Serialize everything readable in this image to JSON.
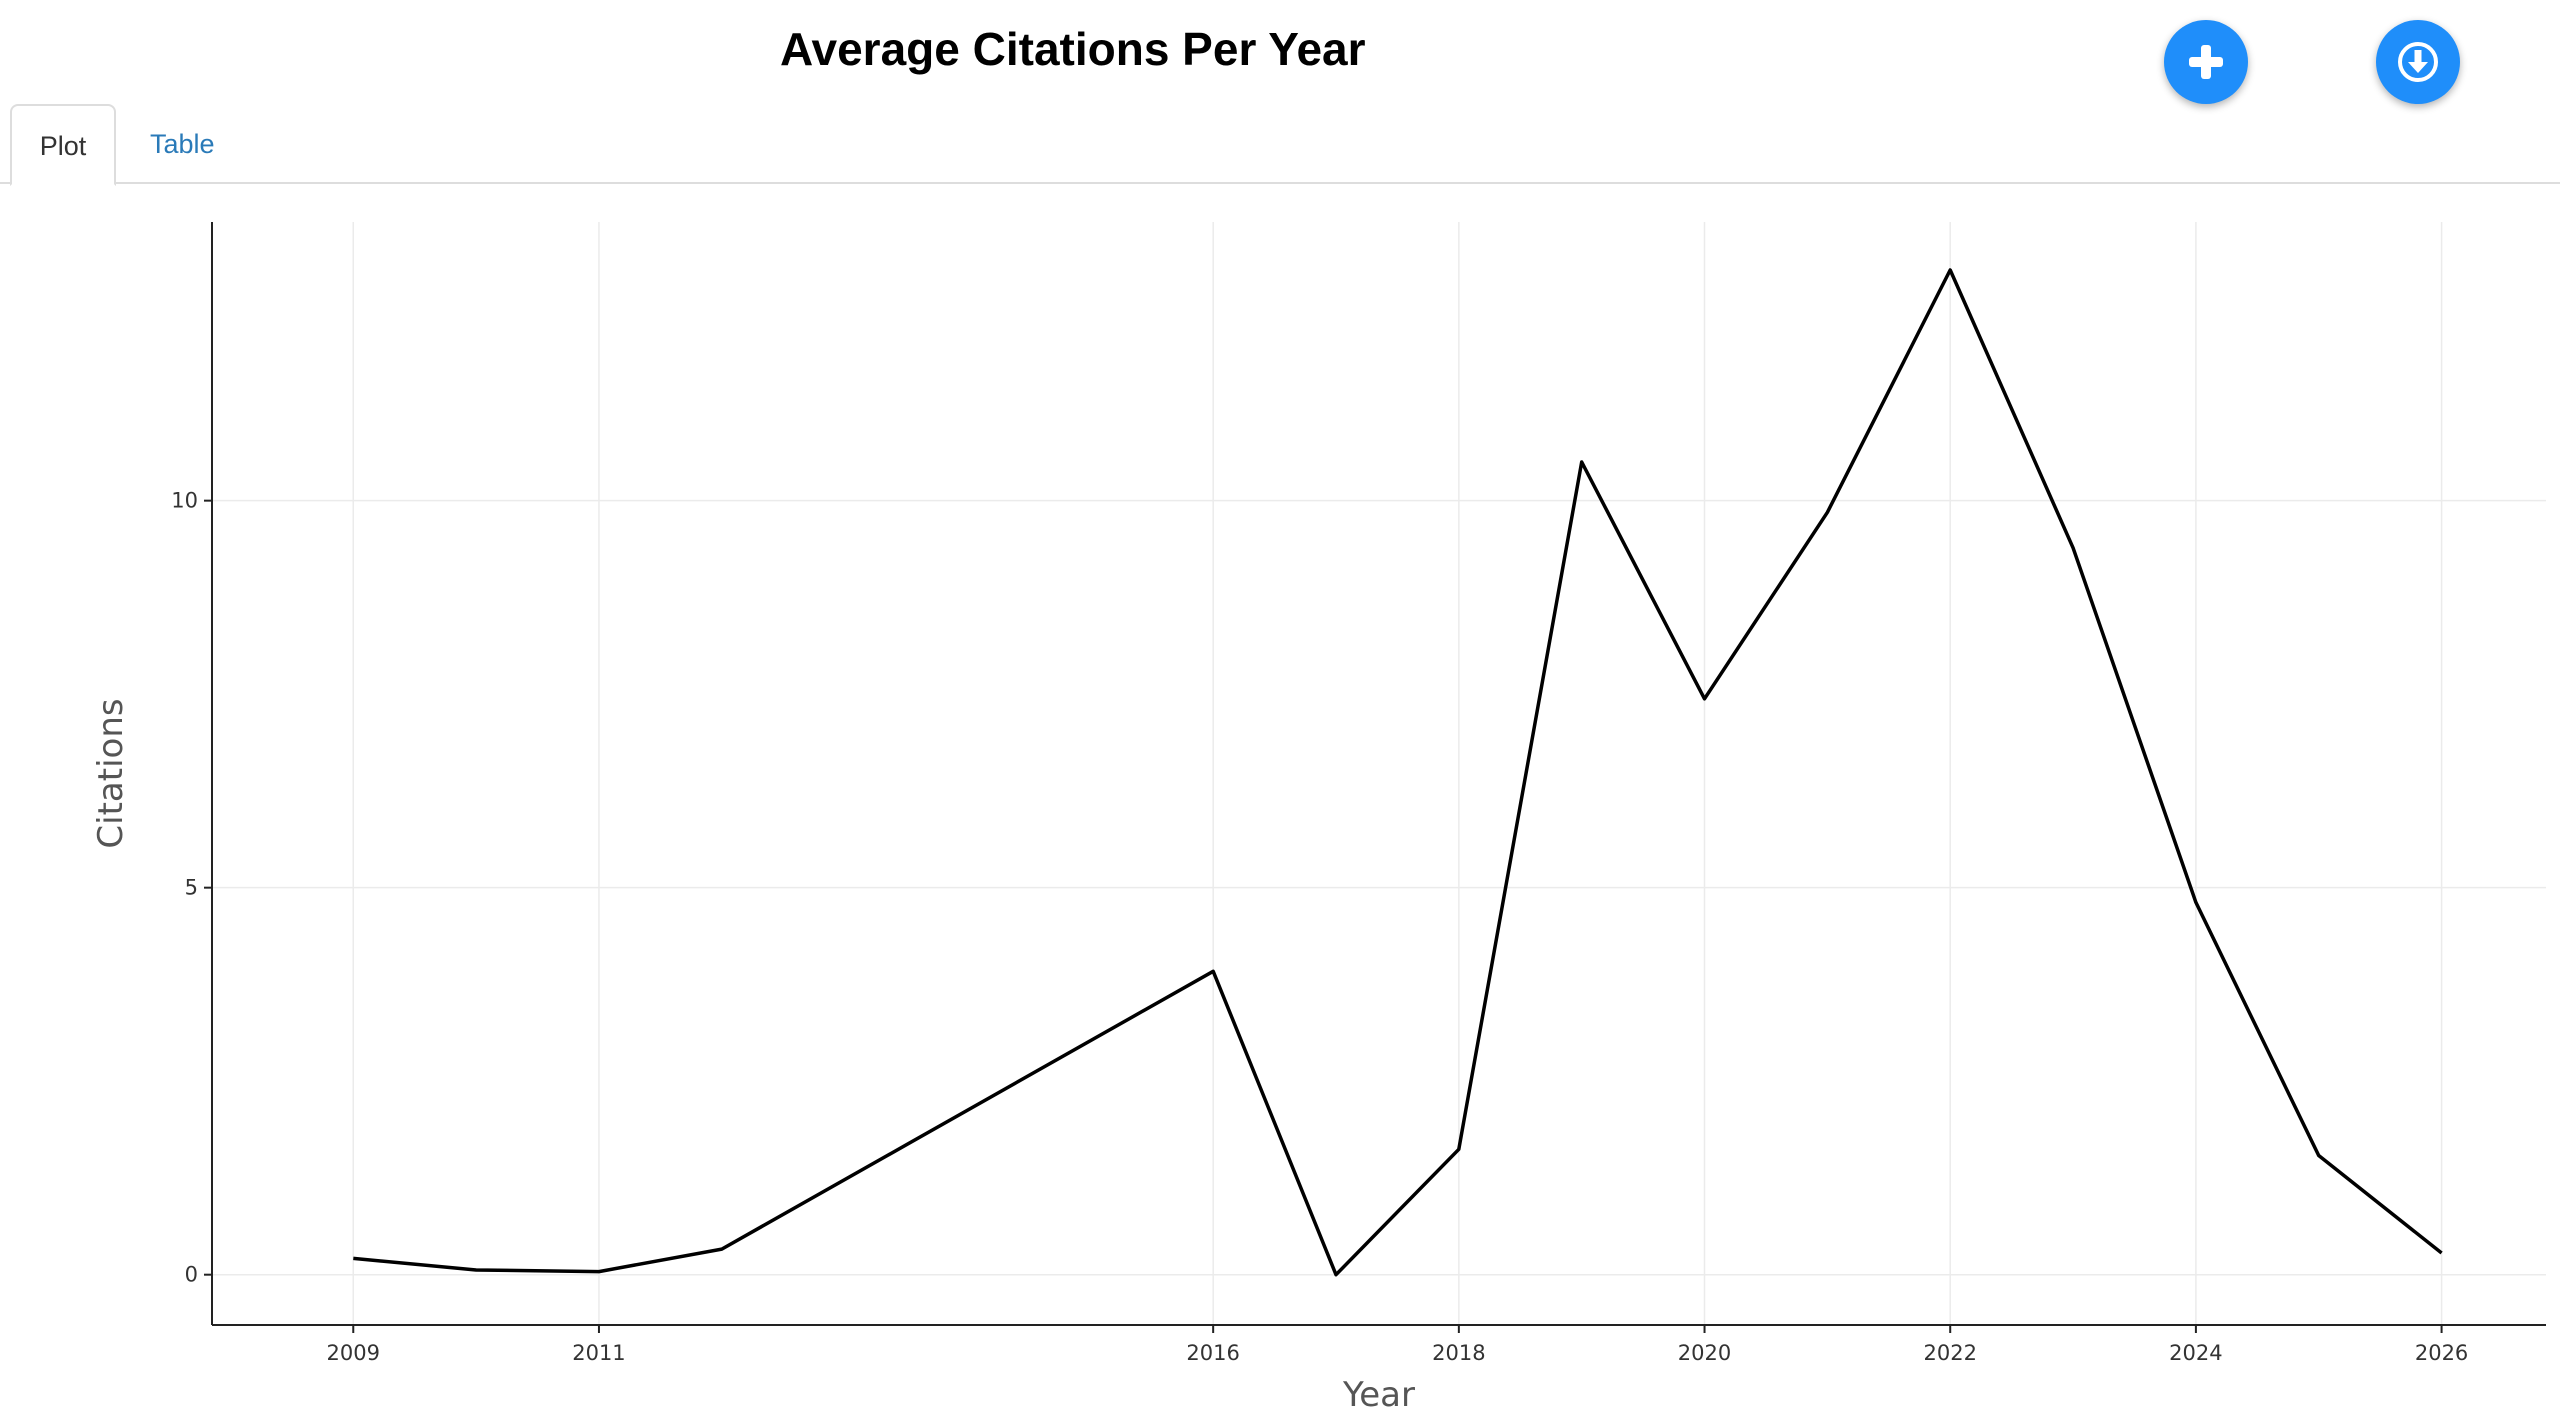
{
  "header": {
    "title": "Average Citations Per Year",
    "add_icon": "plus-icon",
    "download_icon": "download-circle-icon",
    "button_color": "#1f8efa"
  },
  "tabs": [
    {
      "label": "Plot",
      "active": true
    },
    {
      "label": "Table",
      "active": false
    }
  ],
  "chart_data": {
    "type": "line",
    "xlabel": "Year",
    "ylabel": "Citations",
    "x": [
      2009,
      2010,
      2011,
      2012,
      2016,
      2017,
      2018,
      2019,
      2020,
      2021,
      2022,
      2023,
      2024,
      2025,
      2026
    ],
    "y": [
      0.21,
      0.06,
      0.04,
      0.33,
      3.92,
      0.0,
      1.62,
      10.5,
      7.44,
      9.85,
      12.98,
      9.39,
      4.81,
      1.54,
      0.28
    ],
    "xticks": [
      2009,
      2011,
      2016,
      2018,
      2020,
      2022,
      2024,
      2026
    ],
    "yticks": [
      0,
      5,
      10
    ],
    "xlim": [
      2007.85,
      2026.85
    ],
    "ylim": [
      -0.65,
      13.6
    ],
    "line_color": "#000000",
    "grid": true
  }
}
